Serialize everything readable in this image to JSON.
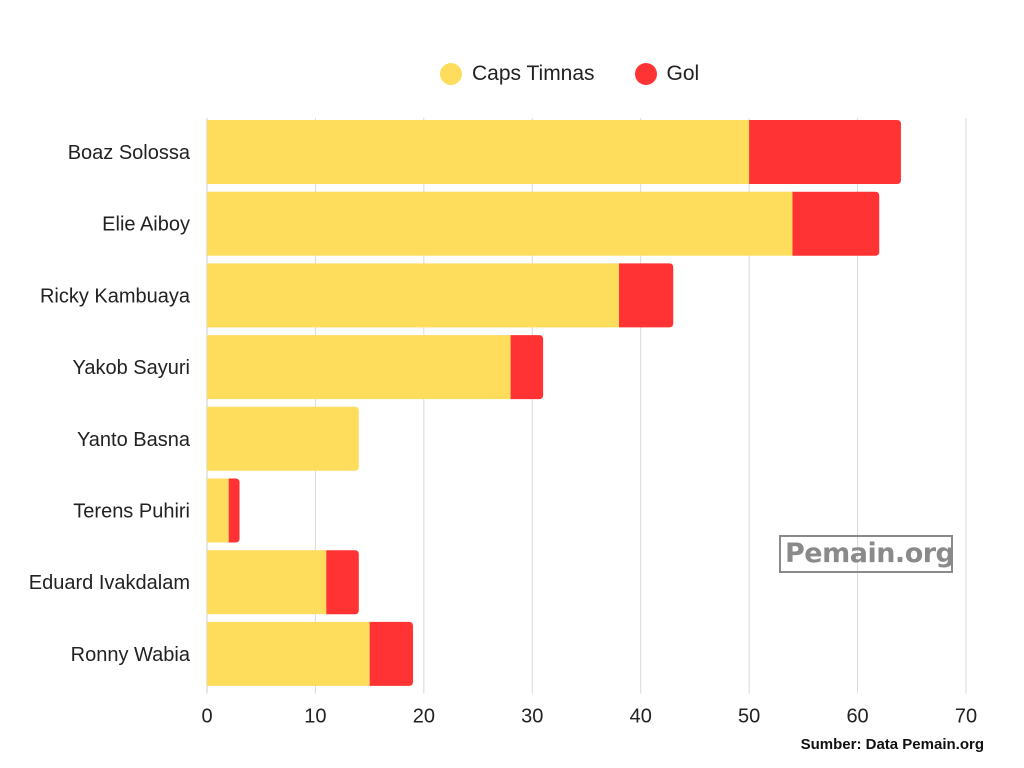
{
  "legend": {
    "caps_label": "Caps Timnas",
    "gol_label": "Gol"
  },
  "colors": {
    "caps": "#FFDD5C",
    "gol": "#FF3333",
    "grid": "#d9d9d9"
  },
  "watermark": "Pemain.org",
  "source": "Sumber: Data Pemain.org",
  "chart_data": {
    "type": "bar",
    "orientation": "horizontal",
    "stacked": true,
    "categories": [
      "Boaz Solossa",
      "Elie Aiboy",
      "Ricky Kambuaya",
      "Yakob Sayuri",
      "Yanto Basna",
      "Terens Puhiri",
      "Eduard Ivakdalam",
      "Ronny Wabia"
    ],
    "series": [
      {
        "name": "Caps Timnas",
        "values": [
          50,
          54,
          38,
          28,
          14,
          2,
          11,
          15
        ]
      },
      {
        "name": "Gol",
        "values": [
          14,
          8,
          5,
          3,
          0,
          1,
          3,
          4
        ]
      }
    ],
    "xlim": [
      0,
      70
    ],
    "xticks": [
      0,
      10,
      20,
      30,
      40,
      50,
      60,
      70
    ],
    "grid": true,
    "legend_position": "top"
  }
}
